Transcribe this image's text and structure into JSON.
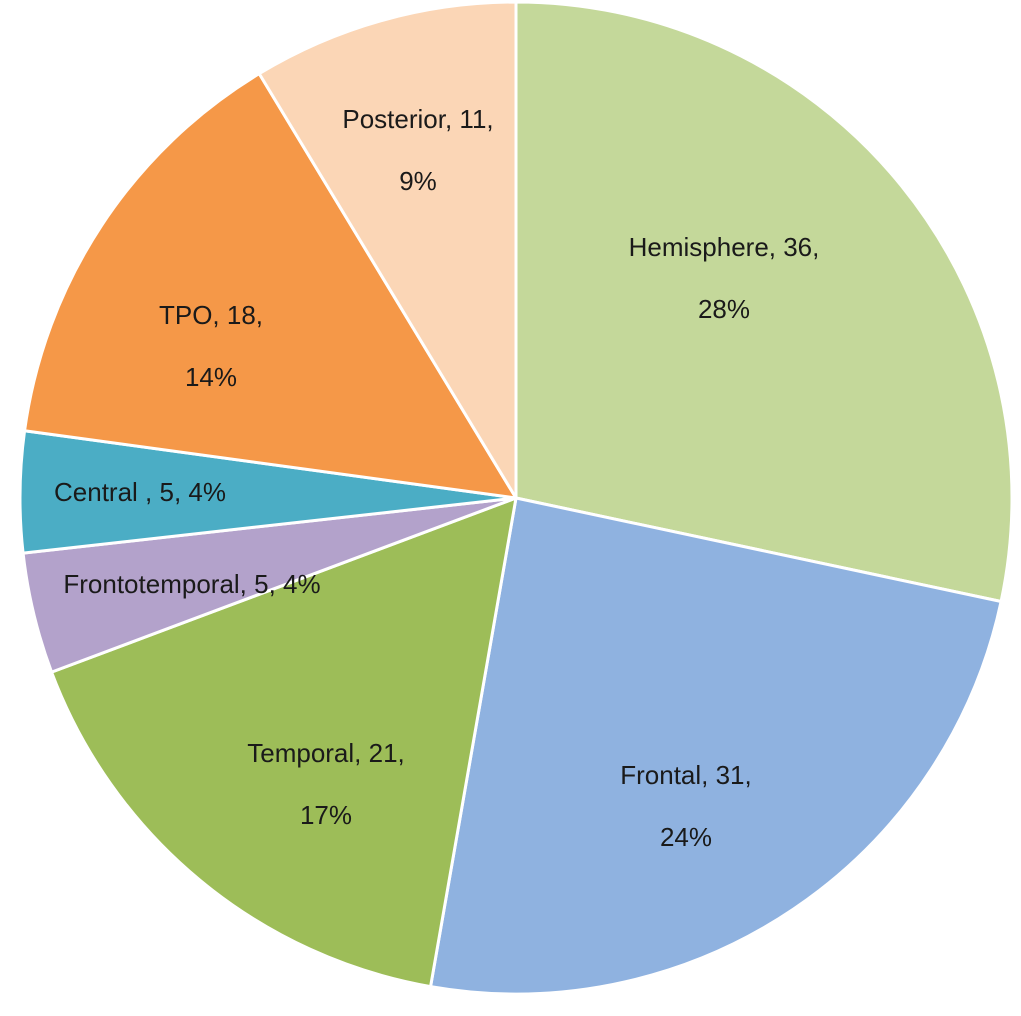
{
  "chart_data": {
    "type": "pie",
    "slices": [
      {
        "name": "Hemisphere",
        "value": 36,
        "percent": "28%",
        "color": "#c4d89a",
        "label_lines": [
          "Hemisphere, 36,",
          "28%"
        ]
      },
      {
        "name": "Frontal",
        "value": 31,
        "percent": "24%",
        "color": "#8fb2e0",
        "label_lines": [
          "Frontal, 31,",
          "24%"
        ]
      },
      {
        "name": "Temporal",
        "value": 21,
        "percent": "17%",
        "color": "#9dbd58",
        "label_lines": [
          "Temporal, 21,",
          "17%"
        ]
      },
      {
        "name": "Frontotemporal",
        "value": 5,
        "percent": "4%",
        "color": "#b3a2cb",
        "label_lines": [
          "Frontotemporal, 5, 4%"
        ]
      },
      {
        "name": "Central",
        "value": 5,
        "percent": "4%",
        "color": "#4badc5",
        "label_lines": [
          "Central , 5, 4%"
        ]
      },
      {
        "name": "TPO",
        "value": 18,
        "percent": "14%",
        "color": "#f59848",
        "label_lines": [
          "TPO, 18,",
          "14%"
        ]
      },
      {
        "name": "Posterior",
        "value": 11,
        "percent": "9%",
        "color": "#fbd6b6",
        "label_lines": [
          "Posterior, 11,",
          "9%"
        ]
      }
    ],
    "start_angle": "12 o'clock",
    "direction": "clockwise",
    "legend": "none"
  }
}
